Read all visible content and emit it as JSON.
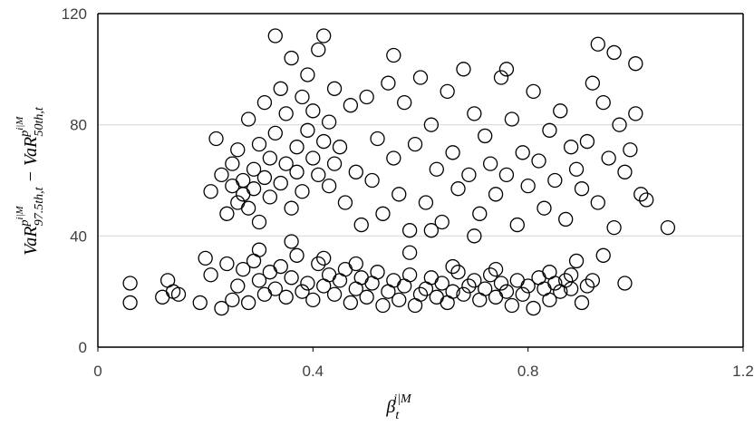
{
  "chart_data": {
    "type": "scatter",
    "x_label": [
      "β",
      "t",
      "i|M"
    ],
    "y_label": [
      "VaR",
      "p",
      "i|M",
      "97.5th,t",
      " − VaR",
      "p",
      "i|M",
      "50th,t"
    ],
    "xlim": [
      0,
      1.2
    ],
    "ylim": [
      0,
      120
    ],
    "xticks": [
      0,
      0.4,
      0.8,
      1.2
    ],
    "yticks": [
      0,
      40,
      80,
      120
    ],
    "grid": true,
    "color": "#000000",
    "x": [
      0.06,
      0.06,
      0.12,
      0.13,
      0.14,
      0.15,
      0.19,
      0.2,
      0.21,
      0.23,
      0.24,
      0.25,
      0.26,
      0.27,
      0.28,
      0.29,
      0.3,
      0.31,
      0.32,
      0.33,
      0.34,
      0.35,
      0.36,
      0.37,
      0.38,
      0.39,
      0.4,
      0.41,
      0.42,
      0.43,
      0.44,
      0.45,
      0.46,
      0.47,
      0.48,
      0.49,
      0.5,
      0.51,
      0.52,
      0.53,
      0.54,
      0.55,
      0.56,
      0.57,
      0.58,
      0.59,
      0.6,
      0.61,
      0.62,
      0.63,
      0.64,
      0.65,
      0.66,
      0.67,
      0.68,
      0.69,
      0.7,
      0.71,
      0.72,
      0.73,
      0.74,
      0.75,
      0.76,
      0.77,
      0.78,
      0.79,
      0.8,
      0.81,
      0.82,
      0.83,
      0.84,
      0.85,
      0.86,
      0.87,
      0.88,
      0.89,
      0.9,
      0.91,
      0.92,
      0.98,
      0.21,
      0.22,
      0.23,
      0.24,
      0.25,
      0.25,
      0.26,
      0.26,
      0.27,
      0.27,
      0.28,
      0.28,
      0.29,
      0.29,
      0.3,
      0.3,
      0.31,
      0.31,
      0.32,
      0.32,
      0.33,
      0.33,
      0.34,
      0.34,
      0.35,
      0.35,
      0.36,
      0.36,
      0.37,
      0.37,
      0.38,
      0.38,
      0.39,
      0.39,
      0.4,
      0.4,
      0.41,
      0.41,
      0.42,
      0.42,
      0.43,
      0.43,
      0.44,
      0.44,
      0.45,
      0.46,
      0.47,
      0.48,
      0.49,
      0.5,
      0.51,
      0.52,
      0.53,
      0.54,
      0.55,
      0.56,
      0.57,
      0.58,
      0.59,
      0.6,
      0.61,
      0.62,
      0.63,
      0.64,
      0.65,
      0.66,
      0.67,
      0.68,
      0.69,
      0.7,
      0.71,
      0.72,
      0.73,
      0.74,
      0.75,
      0.76,
      0.77,
      0.78,
      0.79,
      0.8,
      0.81,
      0.82,
      0.83,
      0.84,
      0.85,
      0.86,
      0.87,
      0.88,
      0.89,
      0.9,
      0.91,
      0.92,
      0.93,
      0.93,
      0.94,
      0.95,
      0.96,
      0.96,
      0.97,
      0.98,
      0.99,
      1.0,
      1.0,
      1.01,
      1.02,
      1.06,
      0.55,
      0.62,
      0.7,
      0.76,
      0.3,
      0.36,
      0.42,
      0.48,
      0.58,
      0.66,
      0.74,
      0.84,
      0.88,
      0.94
    ],
    "y": [
      23,
      16,
      18,
      24,
      20,
      19,
      16,
      32,
      26,
      14,
      30,
      17,
      22,
      28,
      16,
      31,
      24,
      19,
      27,
      21,
      29,
      18,
      25,
      33,
      20,
      23,
      17,
      30,
      22,
      26,
      19,
      24,
      28,
      16,
      21,
      25,
      18,
      23,
      27,
      15,
      20,
      24,
      17,
      22,
      26,
      15,
      19,
      21,
      25,
      18,
      23,
      16,
      20,
      27,
      19,
      22,
      24,
      17,
      21,
      26,
      18,
      23,
      20,
      15,
      24,
      19,
      22,
      14,
      25,
      21,
      17,
      23,
      20,
      24,
      21,
      31,
      16,
      22,
      24,
      23,
      56,
      75,
      62,
      48,
      58,
      66,
      52,
      71,
      55,
      60,
      82,
      50,
      64,
      57,
      73,
      45,
      61,
      88,
      54,
      68,
      112,
      77,
      59,
      93,
      66,
      84,
      50,
      104,
      72,
      63,
      90,
      56,
      78,
      98,
      68,
      85,
      62,
      107,
      112,
      74,
      81,
      58,
      66,
      93,
      72,
      52,
      87,
      63,
      44,
      90,
      60,
      75,
      48,
      95,
      68,
      55,
      88,
      42,
      73,
      97,
      52,
      80,
      64,
      45,
      92,
      70,
      57,
      100,
      62,
      84,
      48,
      76,
      66,
      55,
      97,
      62,
      82,
      44,
      70,
      58,
      92,
      67,
      50,
      78,
      60,
      85,
      46,
      72,
      64,
      57,
      74,
      95,
      109,
      52,
      88,
      68,
      106,
      43,
      80,
      63,
      71,
      102,
      84,
      55,
      53,
      43,
      105,
      42,
      40,
      100,
      35,
      38,
      32,
      30,
      34,
      29,
      28,
      27,
      26,
      33
    ]
  }
}
